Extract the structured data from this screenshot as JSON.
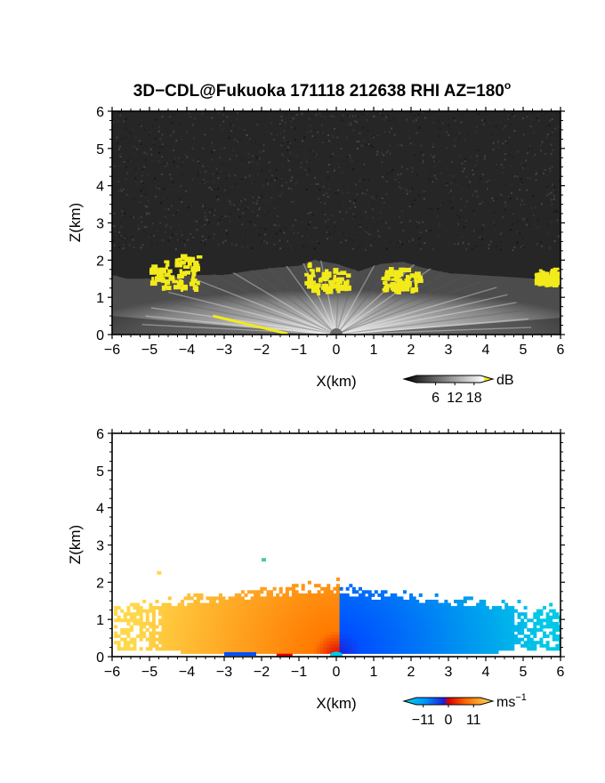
{
  "title_main": "3D−CDL@Fukuoka 171118 212638 RHI AZ=180",
  "title_sup": "o",
  "chart_data": [
    {
      "type": "heatmap",
      "name": "reflectivity-rhi",
      "title": "3D−CDL@Fukuoka 171118 212638 RHI AZ=180°",
      "xlabel": "X(km)",
      "ylabel": "Z(km)",
      "xlim": [
        -6,
        6
      ],
      "ylim": [
        0,
        6
      ],
      "xticks": [
        "−6",
        "−5",
        "−4",
        "−3",
        "−2",
        "−1",
        "0",
        "1",
        "2",
        "3",
        "4",
        "5",
        "6"
      ],
      "yticks": [
        "0",
        "1",
        "2",
        "3",
        "4",
        "5",
        "6"
      ],
      "colorbar": {
        "unit": "dB",
        "ticks": [
          "6",
          "12",
          "18"
        ],
        "range": [
          0,
          20
        ]
      },
      "colors": {
        "background": "#262626",
        "signal_max": "#d8d8d8",
        "saturated": "#f2ea1a",
        "radar_site": "#6a6a6a"
      },
      "features": [
        {
          "label": "echo-layer",
          "z_top_km": 2.0,
          "x_extent_km": [
            -6,
            6
          ]
        },
        {
          "label": "saturated-patch",
          "x_km": [
            -0.9,
            0.3
          ],
          "z_km": [
            1.2,
            2.0
          ]
        },
        {
          "label": "saturated-patch",
          "x_km": [
            1.2,
            2.2
          ],
          "z_km": [
            1.2,
            2.0
          ]
        },
        {
          "label": "saturated-patch",
          "x_km": [
            -5.0,
            -3.7
          ],
          "z_km": [
            1.3,
            2.3
          ]
        },
        {
          "label": "saturated-patch",
          "x_km": [
            5.3,
            5.9
          ],
          "z_km": [
            1.4,
            1.8
          ]
        }
      ]
    },
    {
      "type": "heatmap",
      "name": "doppler-velocity-rhi",
      "xlabel": "X(km)",
      "ylabel": "Z(km)",
      "xlim": [
        -6,
        6
      ],
      "ylim": [
        0,
        6
      ],
      "xticks": [
        "−6",
        "−5",
        "−4",
        "−3",
        "−2",
        "−1",
        "0",
        "1",
        "2",
        "3",
        "4",
        "5",
        "6"
      ],
      "yticks": [
        "0",
        "1",
        "2",
        "3",
        "4",
        "5",
        "6"
      ],
      "colorbar": {
        "unit": "ms",
        "unit_sup": "−1",
        "ticks": [
          "−11",
          "0",
          "11"
        ],
        "range": [
          -14,
          14
        ]
      },
      "colors": {
        "neg_max": "#00c8e6",
        "neg_mid": "#0050ff",
        "zero_neg": "#1e1ed8",
        "zero_pos": "#e00000",
        "pos_mid": "#ff7a00",
        "pos_max": "#ffd84a"
      },
      "features": [
        {
          "label": "positive-velocity-region",
          "x_km": [
            -6,
            0
          ],
          "z_top_km": 2.1
        },
        {
          "label": "negative-velocity-region",
          "x_km": [
            0,
            6
          ],
          "z_top_km": 2.0
        },
        {
          "label": "isolated-echo",
          "x_km": -4.8,
          "z_km": 2.3
        },
        {
          "label": "isolated-echo",
          "x_km": -2.0,
          "z_km": 2.65
        }
      ]
    }
  ]
}
